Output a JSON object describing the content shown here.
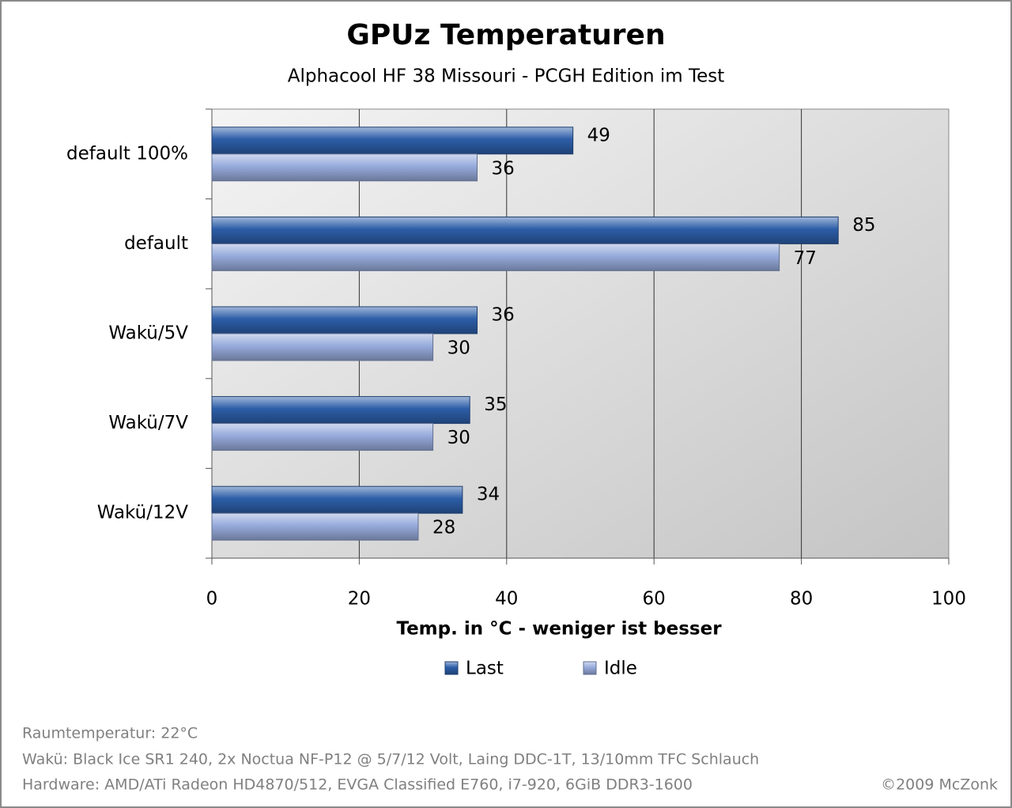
{
  "chart_data": {
    "type": "bar",
    "orientation": "horizontal",
    "title": "GPUz Temperaturen",
    "subtitle": "Alphacool HF 38 Missouri - PCGH Edition  im Test",
    "x_label": "Temp. in °C - weniger ist besser",
    "categories": [
      "default 100%",
      "default",
      "Wakü/5V",
      "Wakü/7V",
      "Wakü/12V"
    ],
    "series": [
      {
        "name": "Last",
        "color": "#2d5ea8",
        "values": [
          49,
          85,
          36,
          35,
          34
        ]
      },
      {
        "name": "Idle",
        "color": "#97abdc",
        "values": [
          36,
          77,
          30,
          30,
          28
        ]
      }
    ],
    "xlim": [
      0,
      100
    ],
    "xticks": [
      0,
      20,
      40,
      60,
      80,
      100
    ],
    "grid": true,
    "legend": "bottom",
    "notes": [
      "Raumtemperatur: 22°C",
      "Wakü: Black Ice SR1 240, 2x Noctua NF-P12 @ 5/7/12 Volt, Laing DDC-1T, 13/10mm TFC Schlauch",
      "Hardware: AMD/ATi Radeon HD4870/512, EVGA Classified E760, i7-920, 6GiB DDR3-1600"
    ],
    "credit": "©2009 McZonk"
  }
}
